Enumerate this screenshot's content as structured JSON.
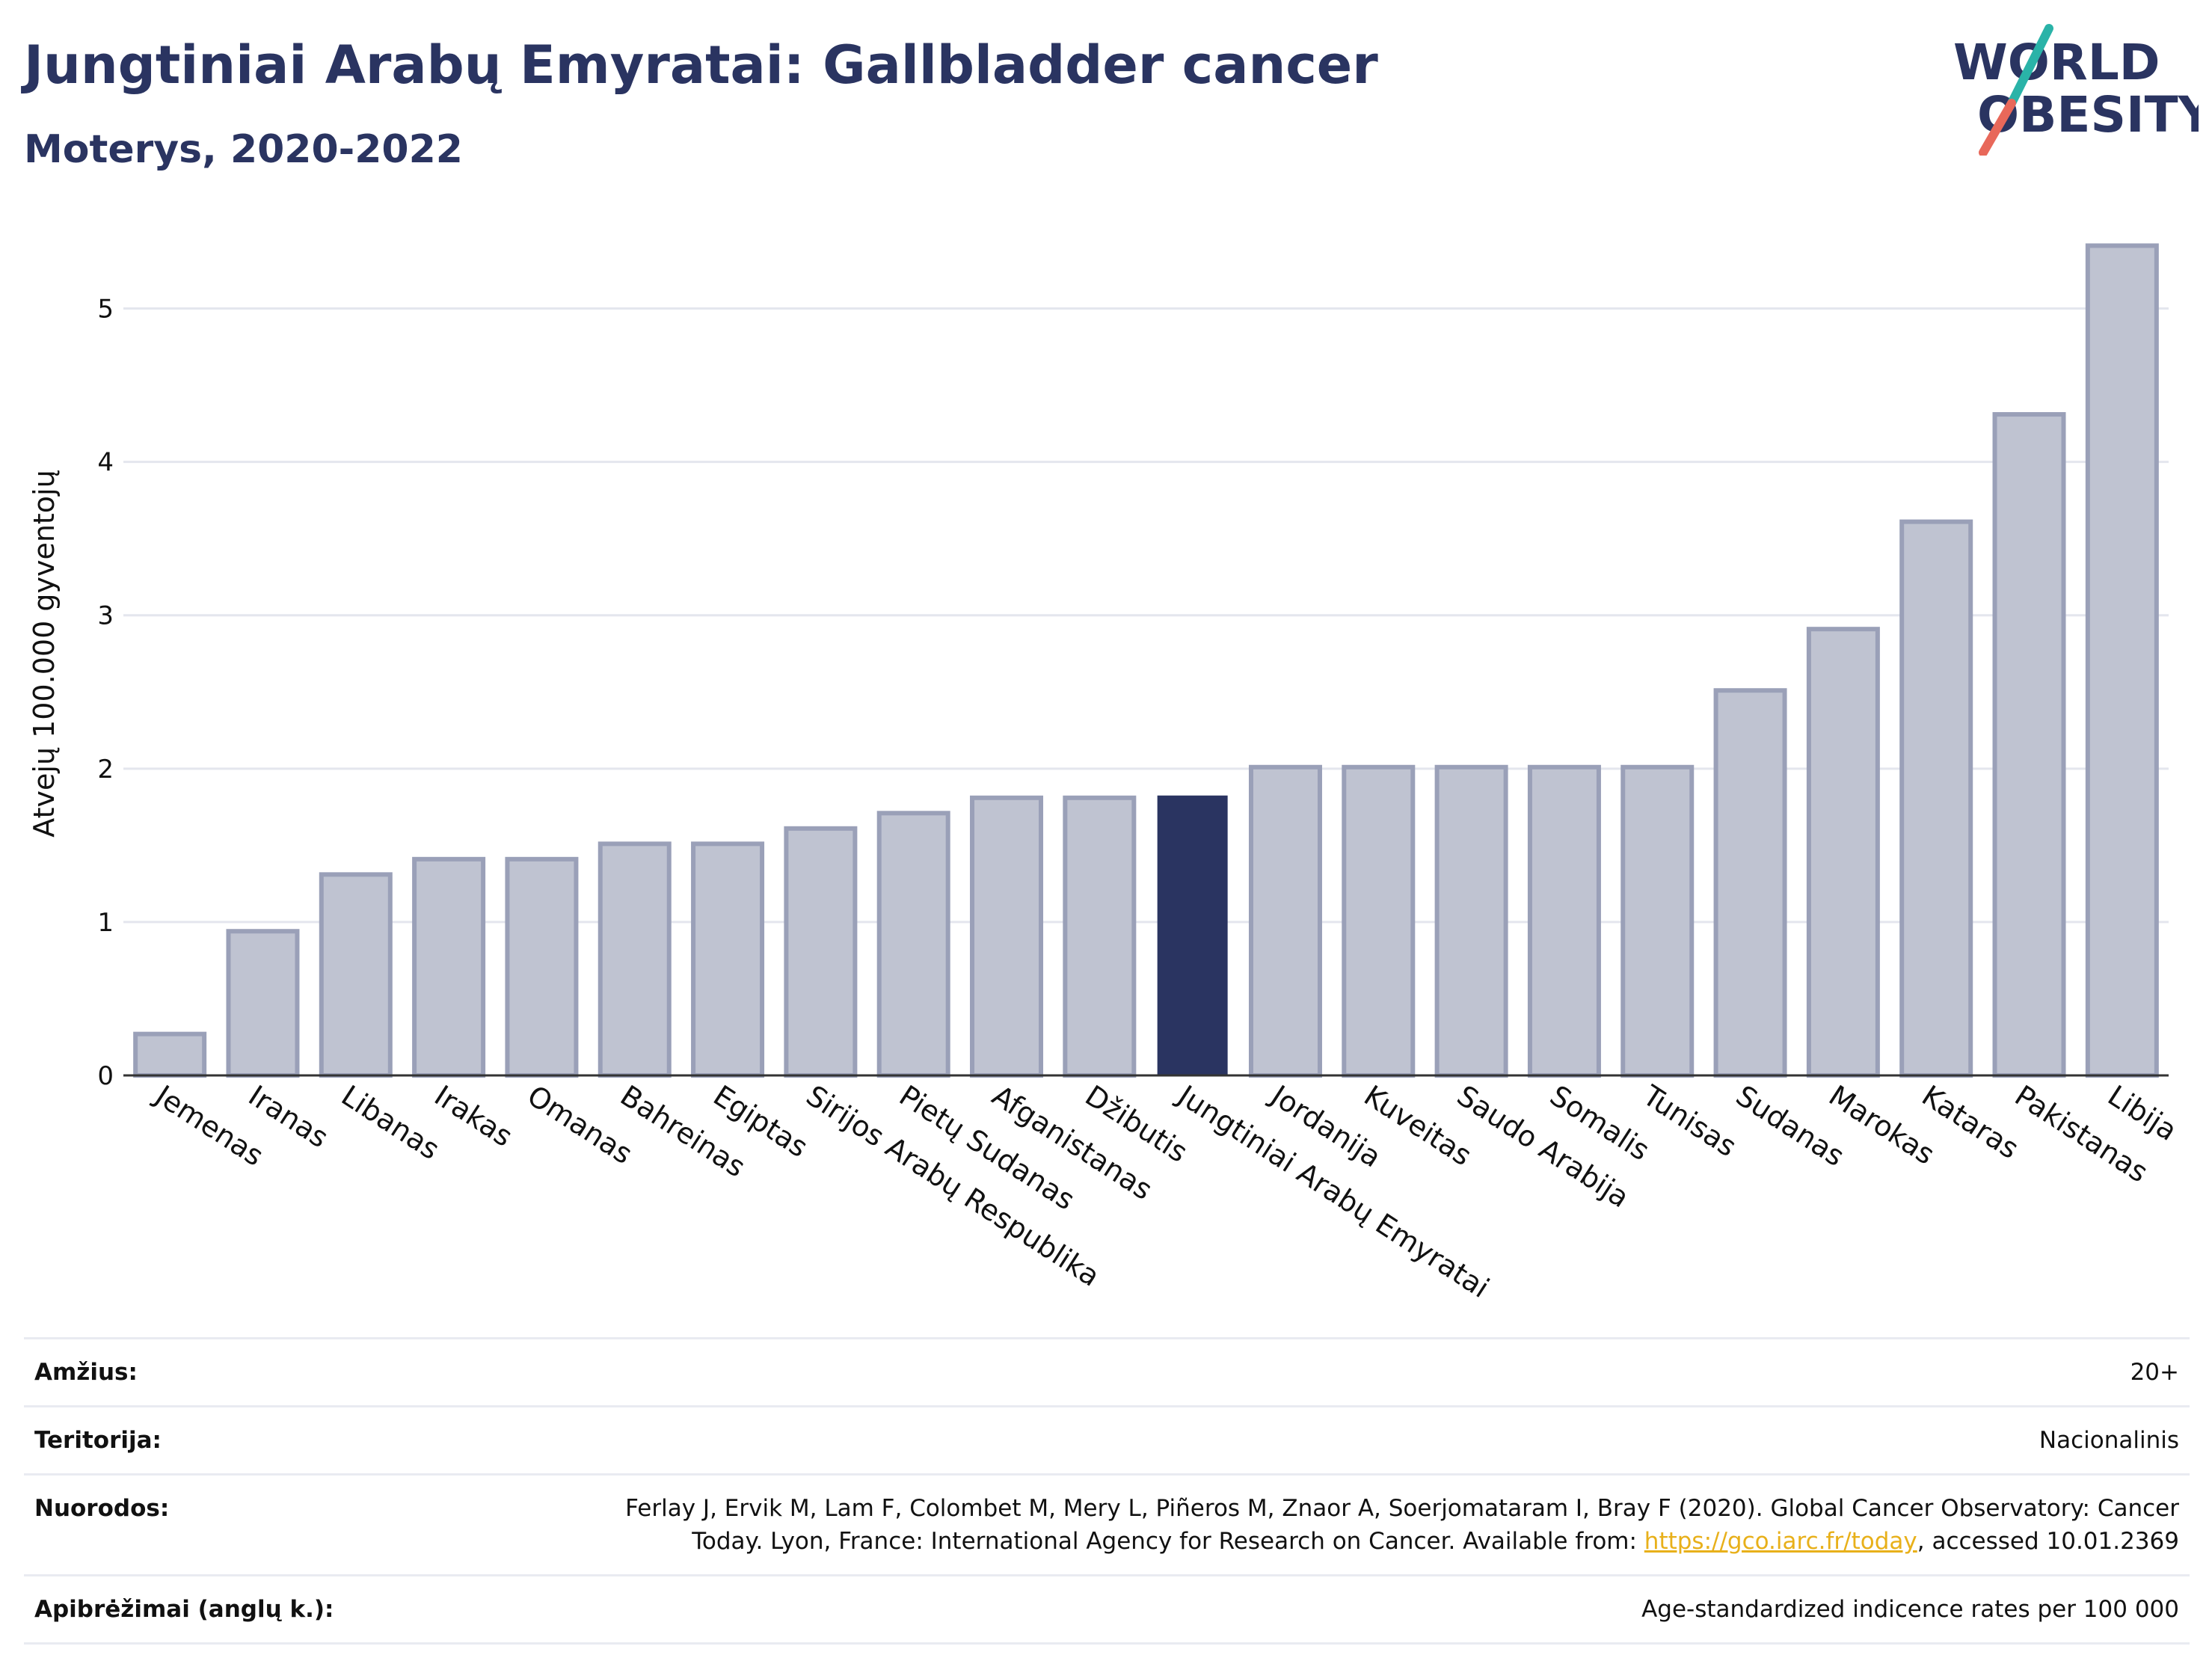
{
  "header": {
    "title": "Jungtiniai Arabų Emyratai: Gallbladder cancer",
    "subtitle": "Moterys, 2020-2022"
  },
  "logo": {
    "line1": "WORLD",
    "line2": "OBESITY",
    "accent_colors": [
      "#2ab3a8",
      "#e8685a"
    ]
  },
  "colors": {
    "bar": "#bfc3d1",
    "bar_stroke": "#9aa0b8",
    "highlight": "#2a3461",
    "title": "#2a3461",
    "grid": "#e4e6ee"
  },
  "chart_data": {
    "type": "bar",
    "ylabel": "Atvejų 100.000 gyventojų",
    "ylim": [
      0,
      5.5
    ],
    "yticks": [
      0,
      1,
      2,
      3,
      4,
      5
    ],
    "grid": true,
    "highlight": "Jungtiniai Arabų Emyratai",
    "categories": [
      "Jemenas",
      "Iranas",
      "Libanas",
      "Irakas",
      "Omanas",
      "Bahreinas",
      "Egiptas",
      "Sirijos Arabų Respublika",
      "Pietų Sudanas",
      "Afganistanas",
      "Džibutis",
      "Jungtiniai Arabų Emyratai",
      "Jordanija",
      "Kuveitas",
      "Saudo Arabija",
      "Somalis",
      "Tunisas",
      "Sudanas",
      "Marokas",
      "Kataras",
      "Pakistanas",
      "Libija"
    ],
    "values": [
      0.27,
      0.94,
      1.31,
      1.41,
      1.41,
      1.51,
      1.51,
      1.61,
      1.71,
      1.81,
      1.81,
      1.82,
      2.01,
      2.01,
      2.01,
      2.01,
      2.01,
      2.51,
      2.91,
      3.61,
      4.31,
      5.41
    ]
  },
  "info": {
    "age_label": "Amžius:",
    "age_value": "20+",
    "territory_label": "Teritorija:",
    "territory_value": "Nacionalinis",
    "refs_label": "Nuorodos:",
    "refs_line1": "Ferlay J, Ervik M, Lam F, Colombet M, Mery L, Piñeros M, Znaor A, Soerjomataram I, Bray F (2020). Global Cancer Observatory: Cancer",
    "refs_line2_pre": "Today. Lyon, France: International Agency for Research on Cancer. Available from: ",
    "refs_link": "https://gco.iarc.fr/today",
    "refs_line2_post": ", accessed 10.01.2369",
    "defs_label": "Apibrėžimai (anglų k.):",
    "defs_value": "Age-standardized indicence rates per 100 000"
  }
}
